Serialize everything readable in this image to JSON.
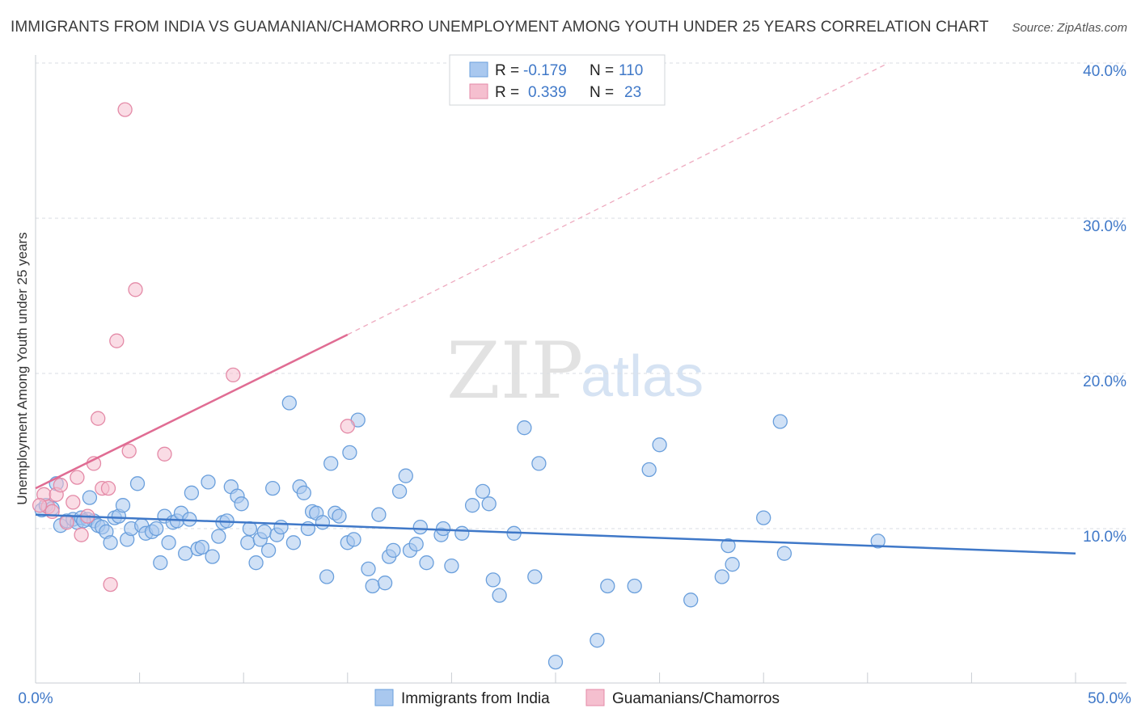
{
  "chart_data": {
    "type": "scatter",
    "title": "IMMIGRANTS FROM INDIA VS GUAMANIAN/CHAMORRO UNEMPLOYMENT AMONG YOUTH UNDER 25 YEARS CORRELATION CHART",
    "source": "Source: ZipAtlas.com",
    "xlabel": "",
    "ylabel": "Unemployment Among Youth under 25 years",
    "xlim": [
      0,
      50
    ],
    "ylim": [
      0,
      41
    ],
    "x_tick_labels": [
      {
        "value": 0,
        "label": "0.0%"
      },
      {
        "value": 50,
        "label": "50.0%"
      }
    ],
    "y_tick_labels": [
      {
        "value": 10,
        "label": "10.0%"
      },
      {
        "value": 20,
        "label": "20.0%"
      },
      {
        "value": 30,
        "label": "30.0%"
      },
      {
        "value": 40,
        "label": "40.0%"
      }
    ],
    "grid": true,
    "watermark": "ZIPatlas",
    "legend": {
      "placement": "top-center",
      "entries": [
        {
          "r_label": "R =",
          "r_value": "-0.179",
          "n_label": "N =",
          "n_value": "110"
        },
        {
          "r_label": "R =",
          "r_value": "0.339",
          "n_label": "N =",
          "n_value": "23"
        }
      ]
    },
    "series": [
      {
        "name": "Immigrants from India",
        "color": "#6a9fdc",
        "fill": "#a9c8ef",
        "trend": {
          "x": [
            0,
            50
          ],
          "y": [
            10.9,
            8.4
          ],
          "dashed_extension": false
        },
        "points": [
          [
            0.3,
            11.2
          ],
          [
            0.5,
            11.5
          ],
          [
            0.8,
            11.3
          ],
          [
            1.0,
            12.9
          ],
          [
            1.2,
            10.2
          ],
          [
            1.5,
            10.5
          ],
          [
            1.8,
            10.6
          ],
          [
            2.0,
            10.4
          ],
          [
            2.2,
            10.7
          ],
          [
            2.5,
            10.6
          ],
          [
            2.6,
            12.0
          ],
          [
            2.8,
            10.5
          ],
          [
            3.0,
            10.2
          ],
          [
            3.2,
            10.1
          ],
          [
            3.4,
            9.8
          ],
          [
            3.6,
            9.1
          ],
          [
            3.8,
            10.7
          ],
          [
            4.0,
            10.8
          ],
          [
            4.2,
            11.5
          ],
          [
            4.4,
            9.3
          ],
          [
            4.6,
            10.0
          ],
          [
            4.9,
            12.9
          ],
          [
            5.1,
            10.2
          ],
          [
            5.3,
            9.7
          ],
          [
            5.6,
            9.8
          ],
          [
            5.8,
            10.0
          ],
          [
            6.0,
            7.8
          ],
          [
            6.2,
            10.8
          ],
          [
            6.4,
            9.1
          ],
          [
            6.6,
            10.4
          ],
          [
            6.8,
            10.5
          ],
          [
            7.0,
            11.0
          ],
          [
            7.2,
            8.4
          ],
          [
            7.4,
            10.6
          ],
          [
            7.5,
            12.3
          ],
          [
            7.8,
            8.7
          ],
          [
            8.0,
            8.8
          ],
          [
            8.3,
            13.0
          ],
          [
            8.5,
            8.2
          ],
          [
            8.8,
            9.5
          ],
          [
            9.0,
            10.4
          ],
          [
            9.2,
            10.5
          ],
          [
            9.4,
            12.7
          ],
          [
            9.7,
            12.1
          ],
          [
            9.9,
            11.6
          ],
          [
            10.2,
            9.1
          ],
          [
            10.3,
            10.0
          ],
          [
            10.6,
            7.8
          ],
          [
            10.8,
            9.3
          ],
          [
            11.0,
            9.8
          ],
          [
            11.2,
            8.6
          ],
          [
            11.4,
            12.6
          ],
          [
            11.6,
            9.6
          ],
          [
            11.8,
            10.1
          ],
          [
            12.2,
            18.1
          ],
          [
            12.4,
            9.1
          ],
          [
            12.7,
            12.7
          ],
          [
            12.9,
            12.3
          ],
          [
            13.1,
            10.0
          ],
          [
            13.3,
            11.1
          ],
          [
            13.5,
            11.0
          ],
          [
            13.8,
            10.4
          ],
          [
            14.0,
            6.9
          ],
          [
            14.2,
            14.2
          ],
          [
            14.4,
            11.0
          ],
          [
            14.6,
            10.8
          ],
          [
            15.0,
            9.1
          ],
          [
            15.1,
            14.9
          ],
          [
            15.3,
            9.3
          ],
          [
            15.5,
            17.0
          ],
          [
            16.0,
            7.4
          ],
          [
            16.2,
            6.3
          ],
          [
            16.5,
            10.9
          ],
          [
            16.8,
            6.5
          ],
          [
            17.0,
            8.2
          ],
          [
            17.2,
            8.6
          ],
          [
            17.5,
            12.4
          ],
          [
            17.8,
            13.4
          ],
          [
            18.0,
            8.6
          ],
          [
            18.3,
            9.0
          ],
          [
            18.5,
            10.1
          ],
          [
            18.8,
            7.8
          ],
          [
            19.5,
            9.6
          ],
          [
            19.6,
            10.0
          ],
          [
            20.0,
            7.6
          ],
          [
            20.5,
            9.7
          ],
          [
            21.0,
            11.5
          ],
          [
            21.5,
            12.4
          ],
          [
            21.8,
            11.6
          ],
          [
            22.0,
            6.7
          ],
          [
            22.3,
            5.7
          ],
          [
            23.0,
            9.7
          ],
          [
            23.5,
            16.5
          ],
          [
            24.0,
            6.9
          ],
          [
            24.2,
            14.2
          ],
          [
            25.0,
            1.4
          ],
          [
            27.0,
            2.8
          ],
          [
            27.5,
            6.3
          ],
          [
            28.8,
            6.3
          ],
          [
            29.5,
            13.8
          ],
          [
            30.0,
            15.4
          ],
          [
            31.5,
            5.4
          ],
          [
            33.0,
            6.9
          ],
          [
            33.3,
            8.9
          ],
          [
            33.5,
            7.7
          ],
          [
            35.0,
            10.7
          ],
          [
            35.8,
            16.9
          ],
          [
            36.0,
            8.4
          ],
          [
            40.5,
            9.2
          ],
          [
            2.3,
            10.5
          ]
        ]
      },
      {
        "name": "Guamanians/Chamorros",
        "color": "#e48aa7",
        "fill": "#f5bfcf",
        "trend": {
          "x": [
            0,
            15
          ],
          "y": [
            12.6,
            22.5
          ],
          "dashed_extension": true,
          "dashed_to": {
            "x": [
              15,
              41
            ],
            "y": [
              22.5,
              40.0
            ]
          }
        },
        "points": [
          [
            0.4,
            12.2
          ],
          [
            0.6,
            11.4
          ],
          [
            0.8,
            11.1
          ],
          [
            1.0,
            12.2
          ],
          [
            1.2,
            12.8
          ],
          [
            1.5,
            10.4
          ],
          [
            1.8,
            11.7
          ],
          [
            2.0,
            13.3
          ],
          [
            2.2,
            9.6
          ],
          [
            2.5,
            10.8
          ],
          [
            2.8,
            14.2
          ],
          [
            3.0,
            17.1
          ],
          [
            3.2,
            12.6
          ],
          [
            3.5,
            12.6
          ],
          [
            3.6,
            6.4
          ],
          [
            3.9,
            22.1
          ],
          [
            4.3,
            37.0
          ],
          [
            4.5,
            15.0
          ],
          [
            4.8,
            25.4
          ],
          [
            6.2,
            14.8
          ],
          [
            9.5,
            19.9
          ],
          [
            15.0,
            16.6
          ],
          [
            0.2,
            11.5
          ]
        ]
      }
    ]
  },
  "legend_bottom": [
    {
      "label": "Immigrants from India"
    },
    {
      "label": "Guamanians/Chamorros"
    }
  ],
  "colors": {
    "blue": "#3f78c8",
    "blue_marker_fill": "#a9c8ef",
    "blue_marker_stroke": "#6a9fdc",
    "pink": "#e06c93",
    "pink_marker_fill": "#f5bfcf",
    "pink_marker_stroke": "#e48aa7",
    "grid": "#d9dde3"
  }
}
